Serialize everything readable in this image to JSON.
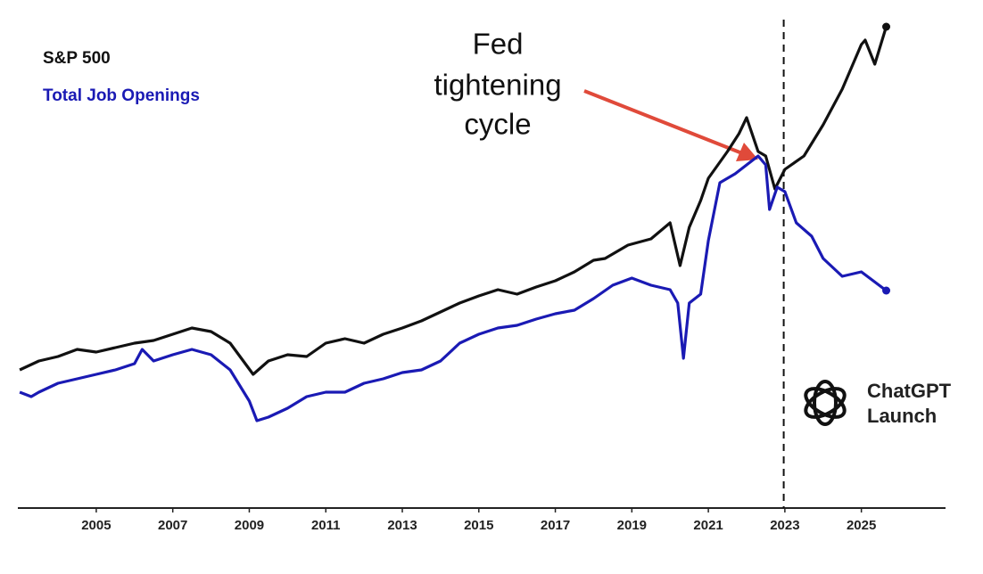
{
  "chart_data": {
    "type": "line",
    "xlim": [
      2002.95,
      2027.2
    ],
    "ylim": [
      0,
      110
    ],
    "xticks": [
      2005,
      2007,
      2009,
      2011,
      2013,
      2015,
      2017,
      2019,
      2021,
      2023,
      2025
    ],
    "series": [
      {
        "name": "S&P 500",
        "color": "#111111",
        "x": [
          2003,
          2003.5,
          2004,
          2004.5,
          2005,
          2005.5,
          2006,
          2006.5,
          2007,
          2007.5,
          2008,
          2008.5,
          2009.1,
          2009.5,
          2010,
          2010.5,
          2011,
          2011.5,
          2012,
          2012.5,
          2013,
          2013.5,
          2014,
          2014.5,
          2015,
          2015.5,
          2016,
          2016.5,
          2017,
          2017.5,
          2018,
          2018.3,
          2018.9,
          2019.5,
          2020,
          2020.26,
          2020.5,
          2020.8,
          2021,
          2021.5,
          2021.8,
          2022,
          2022.3,
          2022.5,
          2022.74,
          2023,
          2023.5,
          2024,
          2024.5,
          2025,
          2025.1,
          2025.35,
          2025.65
        ],
        "values": [
          31,
          33,
          34,
          35.6,
          35,
          36,
          37,
          37.6,
          39,
          40.4,
          39.6,
          37,
          30,
          33,
          34.4,
          34,
          37,
          38,
          37,
          39,
          40.4,
          42,
          44,
          46,
          47.6,
          49,
          48,
          49.6,
          51,
          53,
          55.6,
          56,
          59,
          60.4,
          64,
          54.4,
          63,
          69,
          74,
          80,
          84,
          87.6,
          80,
          79,
          71.6,
          76,
          79,
          86,
          94,
          104,
          105,
          99.6,
          108
        ]
      },
      {
        "name": "Total Job Openings",
        "color": "#1a1ab4",
        "x": [
          2003,
          2003.3,
          2003.5,
          2004,
          2004.5,
          2005,
          2005.5,
          2006,
          2006.2,
          2006.5,
          2007,
          2007.5,
          2008,
          2008.5,
          2009,
          2009.2,
          2009.5,
          2010,
          2010.5,
          2011,
          2011.5,
          2012,
          2012.5,
          2013,
          2013.5,
          2014,
          2014.5,
          2015,
          2015.5,
          2016,
          2016.5,
          2017,
          2017.5,
          2018,
          2018.5,
          2019,
          2019.5,
          2020,
          2020.2,
          2020.35,
          2020.5,
          2020.8,
          2021,
          2021.3,
          2021.7,
          2022,
          2022.3,
          2022.5,
          2022.6,
          2022.8,
          2023,
          2023.3,
          2023.7,
          2024,
          2024.5,
          2025,
          2025.65
        ],
        "values": [
          26,
          25,
          26,
          28,
          29,
          30,
          31,
          32.4,
          35.6,
          33,
          34.4,
          35.6,
          34.4,
          31,
          24,
          19.6,
          20.4,
          22.4,
          25,
          26,
          26,
          28,
          29,
          30.4,
          31,
          33,
          37,
          39,
          40.4,
          41,
          42.4,
          43.6,
          44.4,
          47,
          50,
          51.6,
          50,
          49,
          46,
          33.6,
          46,
          48,
          60,
          73,
          75,
          77,
          79,
          77,
          67,
          72,
          71,
          64,
          61,
          56,
          52,
          53,
          48.8
        ]
      }
    ],
    "annotation": {
      "lines": [
        "Fed",
        "tightening",
        "cycle"
      ]
    },
    "vline": {
      "x": 2022.97,
      "label_lines": [
        "ChatGPT",
        "Launch"
      ]
    }
  }
}
